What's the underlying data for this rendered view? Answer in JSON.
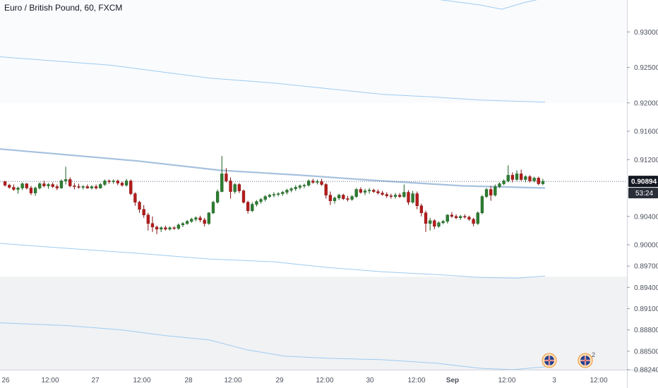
{
  "header": {
    "symbol_title": "Euro / British Pound, 60, FXCM"
  },
  "price_axis": {
    "ticks": [
      "0.93000",
      "0.92500",
      "0.92000",
      "0.91600",
      "0.91200",
      "0.90400",
      "0.90000",
      "0.89700",
      "0.89400",
      "0.89100",
      "0.88800",
      "0.88500",
      "0.88240"
    ]
  },
  "time_axis": {
    "ticks": [
      "26",
      "12:00",
      "27",
      "12:00",
      "28",
      "12:00",
      "29",
      "12:00",
      "30",
      "12:00",
      "Sep",
      "12:00",
      "3",
      "12:00"
    ]
  },
  "current_price": {
    "price": "0.90894",
    "countdown": "53:24"
  },
  "event_badges": [
    {
      "count": ""
    },
    {
      "count": "2"
    }
  ],
  "colors": {
    "up_candle": "#26a69a",
    "up_candle_fill": "#2e7d32",
    "down_candle": "#b71c1c",
    "envelope": "#9ecbf0",
    "moving_average": "#a6c1de",
    "price_line": "#5b6a85",
    "price_label_bg": "#131722",
    "axis_text": "#4c525e"
  },
  "chart_data": {
    "type": "candlestick",
    "symbol": "EURGBP",
    "interval": "60",
    "source": "FXCM",
    "last_price": 0.90894,
    "ylim": [
      0.8824,
      0.9345
    ],
    "candles": [
      [
        0.9089,
        0.909,
        0.9082,
        0.9084
      ],
      [
        0.9084,
        0.9086,
        0.9079,
        0.9081
      ],
      [
        0.9081,
        0.9085,
        0.9076,
        0.9078
      ],
      [
        0.9078,
        0.9082,
        0.9072,
        0.908
      ],
      [
        0.908,
        0.9088,
        0.9077,
        0.9086
      ],
      [
        0.9086,
        0.9087,
        0.9078,
        0.908
      ],
      [
        0.908,
        0.9083,
        0.907,
        0.9073
      ],
      [
        0.9073,
        0.9082,
        0.9069,
        0.908
      ],
      [
        0.908,
        0.9088,
        0.9078,
        0.9086
      ],
      [
        0.9086,
        0.909,
        0.9081,
        0.9083
      ],
      [
        0.9083,
        0.9087,
        0.9079,
        0.9085
      ],
      [
        0.9085,
        0.9088,
        0.908,
        0.9082
      ],
      [
        0.9082,
        0.9085,
        0.9077,
        0.908
      ],
      [
        0.908,
        0.9092,
        0.9079,
        0.909
      ],
      [
        0.909,
        0.911,
        0.9085,
        0.9092
      ],
      [
        0.9092,
        0.9095,
        0.9081,
        0.9083
      ],
      [
        0.9083,
        0.9087,
        0.9078,
        0.9082
      ],
      [
        0.9082,
        0.9086,
        0.9079,
        0.9081
      ],
      [
        0.9081,
        0.9084,
        0.9078,
        0.9082
      ],
      [
        0.9082,
        0.9085,
        0.9079,
        0.908
      ],
      [
        0.908,
        0.9084,
        0.9078,
        0.9082
      ],
      [
        0.9082,
        0.9085,
        0.9078,
        0.908
      ],
      [
        0.908,
        0.9087,
        0.9079,
        0.9085
      ],
      [
        0.9085,
        0.9092,
        0.9083,
        0.909
      ],
      [
        0.909,
        0.9092,
        0.9086,
        0.9089
      ],
      [
        0.9089,
        0.9092,
        0.9086,
        0.909
      ],
      [
        0.909,
        0.9092,
        0.9084,
        0.9087
      ],
      [
        0.9087,
        0.9089,
        0.9082,
        0.9084
      ],
      [
        0.9084,
        0.9093,
        0.9082,
        0.909
      ],
      [
        0.909,
        0.9092,
        0.907,
        0.9072
      ],
      [
        0.9072,
        0.9074,
        0.9055,
        0.906
      ],
      [
        0.906,
        0.9062,
        0.9045,
        0.905
      ],
      [
        0.905,
        0.9056,
        0.9038,
        0.9042
      ],
      [
        0.9042,
        0.9045,
        0.902,
        0.903
      ],
      [
        0.903,
        0.904,
        0.9018,
        0.9025
      ],
      [
        0.9025,
        0.9027,
        0.9015,
        0.9022
      ],
      [
        0.9022,
        0.9026,
        0.9018,
        0.9024
      ],
      [
        0.9024,
        0.9027,
        0.902,
        0.9022
      ],
      [
        0.9022,
        0.9026,
        0.902,
        0.9024
      ],
      [
        0.9024,
        0.9026,
        0.9021,
        0.9023
      ],
      [
        0.9023,
        0.903,
        0.9021,
        0.9028
      ],
      [
        0.9028,
        0.9032,
        0.9025,
        0.903
      ],
      [
        0.903,
        0.9035,
        0.9028,
        0.9033
      ],
      [
        0.9033,
        0.9038,
        0.9031,
        0.9036
      ],
      [
        0.9036,
        0.904,
        0.9033,
        0.9038
      ],
      [
        0.9038,
        0.9041,
        0.9032,
        0.9035
      ],
      [
        0.9035,
        0.9038,
        0.9026,
        0.903
      ],
      [
        0.903,
        0.9046,
        0.9028,
        0.9045
      ],
      [
        0.9045,
        0.9062,
        0.9043,
        0.906
      ],
      [
        0.906,
        0.9078,
        0.9058,
        0.9075
      ],
      [
        0.9075,
        0.9125,
        0.9074,
        0.91
      ],
      [
        0.91,
        0.9108,
        0.9088,
        0.909
      ],
      [
        0.909,
        0.9095,
        0.9065,
        0.9075
      ],
      [
        0.9075,
        0.9087,
        0.9072,
        0.9085
      ],
      [
        0.9085,
        0.9087,
        0.9073,
        0.9076
      ],
      [
        0.9076,
        0.9078,
        0.9058,
        0.906
      ],
      [
        0.906,
        0.9062,
        0.9044,
        0.9048
      ],
      [
        0.9048,
        0.906,
        0.9046,
        0.9057
      ],
      [
        0.9057,
        0.9063,
        0.9054,
        0.9061
      ],
      [
        0.9061,
        0.9066,
        0.9058,
        0.9064
      ],
      [
        0.9064,
        0.907,
        0.9061,
        0.9068
      ],
      [
        0.9068,
        0.9072,
        0.9066,
        0.907
      ],
      [
        0.907,
        0.9074,
        0.9067,
        0.9071
      ],
      [
        0.9071,
        0.9074,
        0.9068,
        0.9072
      ],
      [
        0.9072,
        0.9076,
        0.9069,
        0.9074
      ],
      [
        0.9074,
        0.9079,
        0.9071,
        0.9077
      ],
      [
        0.9077,
        0.9081,
        0.9074,
        0.9079
      ],
      [
        0.9079,
        0.9084,
        0.9076,
        0.9081
      ],
      [
        0.9081,
        0.9085,
        0.9078,
        0.9083
      ],
      [
        0.9083,
        0.9086,
        0.908,
        0.9084
      ],
      [
        0.9084,
        0.9092,
        0.9082,
        0.909
      ],
      [
        0.909,
        0.9093,
        0.9086,
        0.9088
      ],
      [
        0.9088,
        0.9092,
        0.9085,
        0.9089
      ],
      [
        0.9089,
        0.9093,
        0.9083,
        0.9085
      ],
      [
        0.9085,
        0.9087,
        0.9065,
        0.907
      ],
      [
        0.907,
        0.9075,
        0.9056,
        0.9062
      ],
      [
        0.9062,
        0.9068,
        0.9058,
        0.9066
      ],
      [
        0.9066,
        0.9072,
        0.9063,
        0.907
      ],
      [
        0.907,
        0.9072,
        0.9063,
        0.9065
      ],
      [
        0.9065,
        0.9069,
        0.9061,
        0.9064
      ],
      [
        0.9064,
        0.907,
        0.9062,
        0.9068
      ],
      [
        0.9068,
        0.908,
        0.9066,
        0.9078
      ],
      [
        0.9078,
        0.9081,
        0.9072,
        0.9074
      ],
      [
        0.9074,
        0.9079,
        0.907,
        0.9076
      ],
      [
        0.9076,
        0.908,
        0.9072,
        0.9077
      ],
      [
        0.9077,
        0.9079,
        0.9073,
        0.9075
      ],
      [
        0.9075,
        0.9078,
        0.9071,
        0.9073
      ],
      [
        0.9073,
        0.9076,
        0.9069,
        0.9071
      ],
      [
        0.9071,
        0.9074,
        0.9066,
        0.9069
      ],
      [
        0.9069,
        0.9072,
        0.9065,
        0.9068
      ],
      [
        0.9068,
        0.9073,
        0.9065,
        0.907
      ],
      [
        0.907,
        0.9073,
        0.9066,
        0.9068
      ],
      [
        0.9068,
        0.9085,
        0.9066,
        0.9074
      ],
      [
        0.9074,
        0.9077,
        0.9056,
        0.906
      ],
      [
        0.906,
        0.9076,
        0.9058,
        0.9072
      ],
      [
        0.9072,
        0.9075,
        0.905,
        0.9055
      ],
      [
        0.9055,
        0.9058,
        0.904,
        0.9045
      ],
      [
        0.9045,
        0.9048,
        0.9018,
        0.903
      ],
      [
        0.903,
        0.9038,
        0.902,
        0.9034
      ],
      [
        0.9034,
        0.9036,
        0.9022,
        0.9026
      ],
      [
        0.9026,
        0.9033,
        0.9024,
        0.9031
      ],
      [
        0.9031,
        0.9035,
        0.9029,
        0.9033
      ],
      [
        0.9033,
        0.9043,
        0.903,
        0.9042
      ],
      [
        0.9042,
        0.9046,
        0.9038,
        0.904
      ],
      [
        0.904,
        0.9043,
        0.9036,
        0.9038
      ],
      [
        0.9038,
        0.9042,
        0.9035,
        0.904
      ],
      [
        0.904,
        0.9043,
        0.9037,
        0.9039
      ],
      [
        0.9039,
        0.9041,
        0.9034,
        0.9036
      ],
      [
        0.9036,
        0.9038,
        0.9026,
        0.903
      ],
      [
        0.903,
        0.9047,
        0.9028,
        0.9045
      ],
      [
        0.9045,
        0.907,
        0.9043,
        0.9068
      ],
      [
        0.9068,
        0.908,
        0.9066,
        0.9078
      ],
      [
        0.9078,
        0.9083,
        0.9062,
        0.907
      ],
      [
        0.907,
        0.9085,
        0.9068,
        0.9082
      ],
      [
        0.9082,
        0.9088,
        0.908,
        0.9086
      ],
      [
        0.9086,
        0.9092,
        0.9084,
        0.909
      ],
      [
        0.909,
        0.9112,
        0.9088,
        0.9098
      ],
      [
        0.9098,
        0.9102,
        0.9088,
        0.9092
      ],
      [
        0.9092,
        0.9105,
        0.909,
        0.91
      ],
      [
        0.91,
        0.9106,
        0.909,
        0.9092
      ],
      [
        0.9092,
        0.9098,
        0.9088,
        0.9096
      ],
      [
        0.9096,
        0.9098,
        0.9088,
        0.909
      ],
      [
        0.909,
        0.9096,
        0.9088,
        0.9094
      ],
      [
        0.9094,
        0.9096,
        0.9084,
        0.9086
      ],
      [
        0.9086,
        0.9093,
        0.9084,
        0.90894
      ]
    ],
    "moving_average": [
      [
        0,
        0.9135
      ],
      [
        0.25,
        0.9118
      ],
      [
        0.4,
        0.9105
      ],
      [
        0.55,
        0.9098
      ],
      [
        0.7,
        0.909
      ],
      [
        0.85,
        0.9083
      ],
      [
        1,
        0.908
      ]
    ],
    "envelope_upper": [
      [
        0,
        0.9265
      ],
      [
        0.08,
        0.926
      ],
      [
        0.2,
        0.9253
      ],
      [
        0.3,
        0.9243
      ],
      [
        0.38,
        0.9235
      ],
      [
        0.5,
        0.9228
      ],
      [
        0.6,
        0.922
      ],
      [
        0.7,
        0.9212
      ],
      [
        0.8,
        0.9208
      ],
      [
        0.88,
        0.9204
      ],
      [
        1,
        0.9201
      ]
    ],
    "envelope_top": [
      [
        0.6,
        0.9365
      ],
      [
        0.7,
        0.9358
      ],
      [
        0.8,
        0.9346
      ],
      [
        0.88,
        0.9338
      ],
      [
        0.92,
        0.9332
      ],
      [
        0.96,
        0.9341
      ],
      [
        1,
        0.9348
      ]
    ],
    "envelope_lower": [
      [
        0,
        0.9002
      ],
      [
        0.1,
        0.8996
      ],
      [
        0.25,
        0.8988
      ],
      [
        0.38,
        0.898
      ],
      [
        0.5,
        0.8976
      ],
      [
        0.6,
        0.8968
      ],
      [
        0.7,
        0.8962
      ],
      [
        0.8,
        0.8958
      ],
      [
        0.88,
        0.8954
      ],
      [
        0.95,
        0.8953
      ],
      [
        1,
        0.8956
      ]
    ],
    "envelope_bottom": [
      [
        0,
        0.889
      ],
      [
        0.12,
        0.8886
      ],
      [
        0.22,
        0.888
      ],
      [
        0.3,
        0.8872
      ],
      [
        0.38,
        0.8866
      ],
      [
        0.45,
        0.8852
      ],
      [
        0.52,
        0.8843
      ],
      [
        0.6,
        0.884
      ],
      [
        0.7,
        0.8838
      ],
      [
        0.8,
        0.8833
      ],
      [
        0.88,
        0.8826
      ],
      [
        0.94,
        0.8824
      ],
      [
        1,
        0.8828
      ]
    ]
  }
}
